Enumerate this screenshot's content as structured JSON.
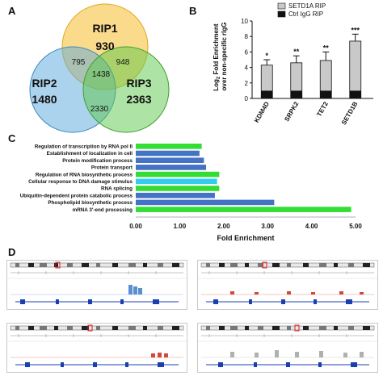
{
  "panels": {
    "a": "A",
    "b": "B",
    "c": "C",
    "d": "D"
  },
  "venn": {
    "sets": [
      {
        "name": "RIP1",
        "count": "930",
        "color": "#f6c23e"
      },
      {
        "name": "RIP2",
        "count": "1480",
        "color": "#5aa8dc"
      },
      {
        "name": "RIP3",
        "count": "2363",
        "color": "#5bc84a"
      }
    ],
    "overlaps": {
      "rip1_rip2": "795",
      "rip1_rip3": "948",
      "all": "1438",
      "rip2_rip3": "2330"
    }
  },
  "chart_data": [
    {
      "type": "bar",
      "stacked": true,
      "categories": [
        "KDM4D",
        "SRPK2",
        "TET2",
        "SETD1B"
      ],
      "series": [
        {
          "name": "SETD1A RIP",
          "values": [
            4.3,
            4.6,
            4.9,
            7.4
          ],
          "color": "#c9c9c9"
        },
        {
          "name": "Ctrl IgG RIP",
          "values": [
            1.0,
            1.0,
            1.0,
            1.0
          ],
          "color": "#111111"
        }
      ],
      "error": [
        0.7,
        0.9,
        1.1,
        0.9
      ],
      "significance": [
        "*",
        "**",
        "**",
        "***"
      ],
      "ylabel": "Log2 Fold Enrichment over non-specific rIgG",
      "ylim": [
        0,
        10
      ],
      "yticks": [
        "0",
        "2",
        "4",
        "6",
        "8",
        "10"
      ]
    },
    {
      "type": "bar",
      "orientation": "horizontal",
      "categories": [
        "Regulation of transcription by RNA pol II",
        "Establishment of localization in cell",
        "Protein modification process",
        "Protein transport",
        "Regulation of RNA biosynthetic process",
        "Cellular response to DNA damage stimulus",
        "RNA splicing",
        "Ubiquitin-dependent protein catabolic process",
        "Phospholipid biosynthetic process",
        "mRNA 3'-end processing"
      ],
      "values": [
        1.5,
        1.45,
        1.55,
        1.6,
        1.9,
        1.85,
        1.9,
        1.8,
        3.15,
        4.9
      ],
      "colors": [
        "#33dd33",
        "#4472c4",
        "#4472c4",
        "#4472c4",
        "#33dd33",
        "#33ccee",
        "#33dd33",
        "#4472c4",
        "#4472c4",
        "#33dd33"
      ],
      "xlabel": "Fold Enrichment",
      "xlim": [
        0,
        5
      ],
      "xticks": [
        "0.00",
        "1.00",
        "2.00",
        "3.00",
        "4.00",
        "5.00"
      ]
    }
  ],
  "tracks": [
    {
      "peak": "#5a8fd0"
    },
    {
      "peak": "#d04a3a"
    },
    {
      "peak": "#d04a3a"
    },
    {
      "peak": "#b0b0b0"
    }
  ]
}
